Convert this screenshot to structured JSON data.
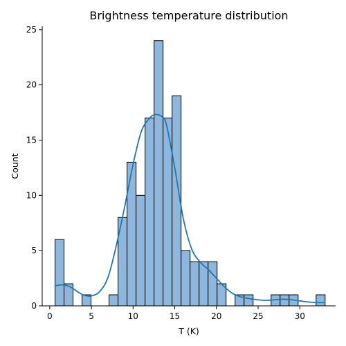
{
  "chart_data": {
    "type": "bar",
    "title": "Brightness temperature distribution",
    "xlabel": "T (K)",
    "ylabel": "Count",
    "xlim": [
      -0.9,
      34.3
    ],
    "ylim": [
      0,
      25.3
    ],
    "x_ticks": [
      0,
      5,
      10,
      15,
      20,
      25,
      30
    ],
    "y_ticks": [
      0,
      5,
      10,
      15,
      20,
      25
    ],
    "grid": false,
    "bar_color": "#8db7dc",
    "kde_color": "#1f77b4",
    "bin_edges": [
      0.64,
      1.72,
      2.8,
      3.88,
      4.96,
      6.04,
      7.12,
      8.2,
      9.28,
      10.36,
      11.44,
      12.52,
      13.6,
      14.68,
      15.76,
      16.84,
      17.92,
      19.0,
      20.08,
      21.16,
      22.24,
      23.32,
      24.4,
      25.48,
      26.56,
      27.64,
      28.72,
      29.8,
      30.88,
      31.96,
      33.04
    ],
    "counts": [
      6,
      2,
      0,
      1,
      0,
      0,
      1,
      8,
      13,
      10,
      17,
      24,
      17,
      19,
      5,
      4,
      4,
      4,
      2,
      0,
      1,
      1,
      0,
      0,
      1,
      1,
      1,
      0,
      0,
      1
    ],
    "kde": {
      "x": [
        0.6,
        1.5,
        2.5,
        3.5,
        4.2,
        5.0,
        6.0,
        7.0,
        8.0,
        9.0,
        10.0,
        11.0,
        12.0,
        12.6,
        13.0,
        13.5,
        14.0,
        15.0,
        16.0,
        17.0,
        18.0,
        19.0,
        20.0,
        21.0,
        22.0,
        23.0,
        24.0,
        25.0,
        26.0,
        27.0,
        28.0,
        29.0,
        30.0,
        31.0,
        32.0,
        32.9
      ],
      "y": [
        1.8,
        1.9,
        1.7,
        1.2,
        0.95,
        0.9,
        1.3,
        2.6,
        5.5,
        9.0,
        12.8,
        15.8,
        17.0,
        17.3,
        17.3,
        17.1,
        16.4,
        12.5,
        8.0,
        5.2,
        4.0,
        3.3,
        2.5,
        1.7,
        1.1,
        0.8,
        0.65,
        0.55,
        0.5,
        0.55,
        0.6,
        0.55,
        0.45,
        0.35,
        0.3,
        0.3
      ]
    }
  }
}
